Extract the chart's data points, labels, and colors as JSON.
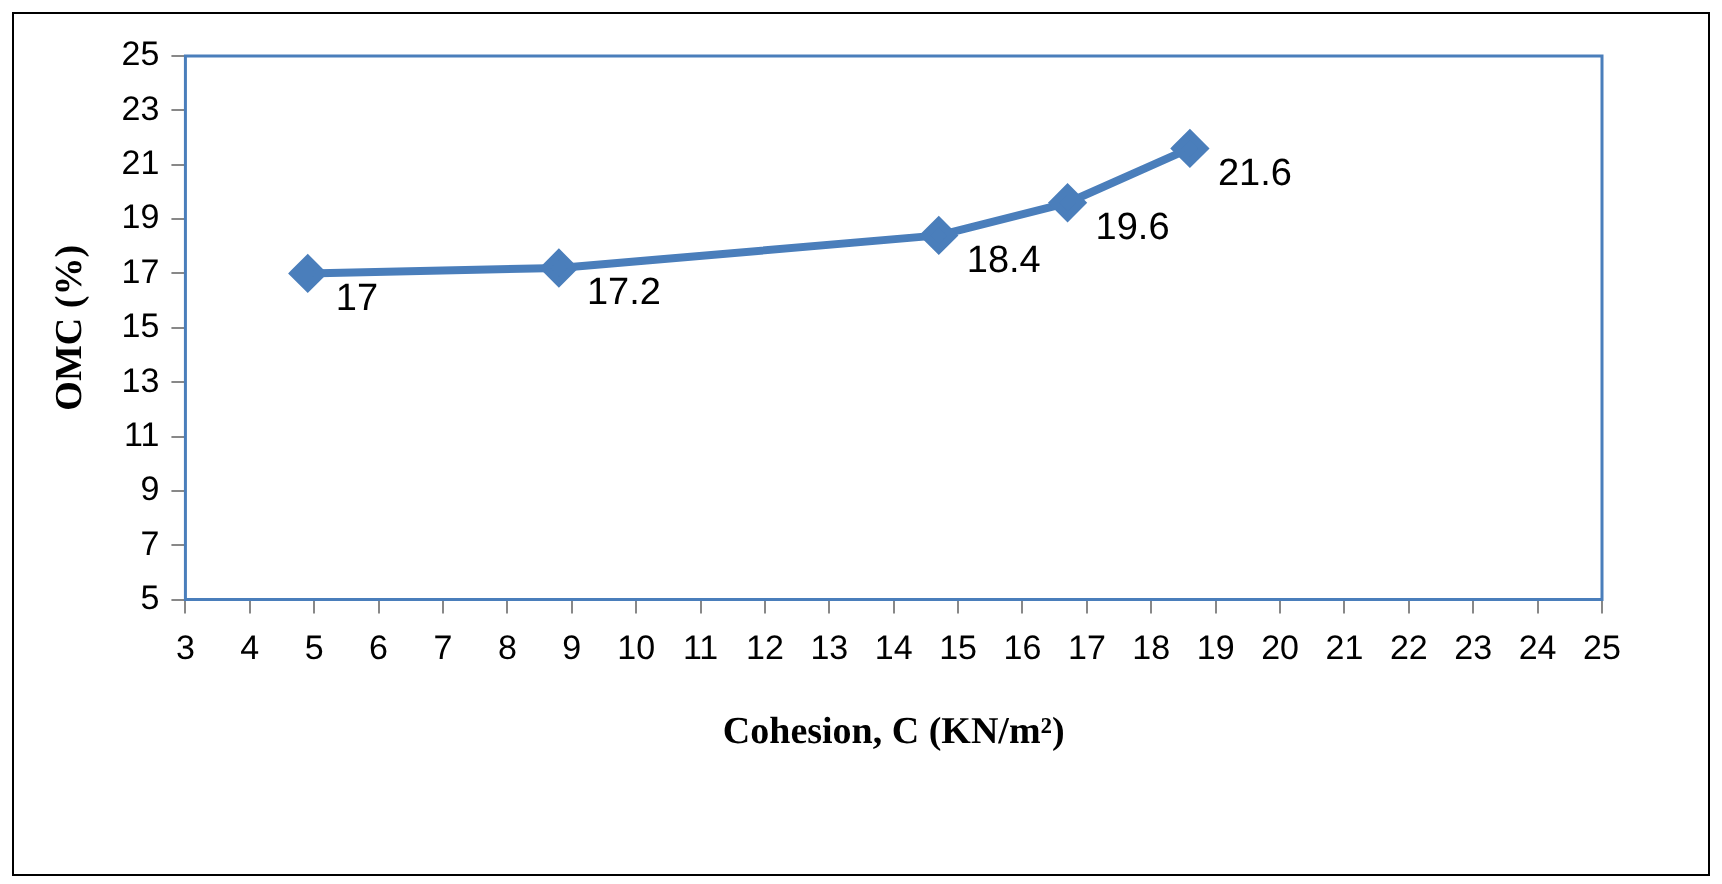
{
  "chart_data": {
    "type": "line",
    "xlabel": "Cohesion, C (KN/m²)",
    "ylabel": "OMC (%)",
    "x": [
      4.9,
      8.8,
      14.7,
      16.7,
      18.6
    ],
    "series": [
      {
        "color": "#4a7ebb",
        "values": [
          17,
          17.2,
          18.4,
          19.6,
          21.6
        ]
      }
    ],
    "xlim": [
      3,
      25
    ],
    "xticks": [
      3,
      4,
      5,
      6,
      7,
      8,
      9,
      10,
      11,
      12,
      13,
      14,
      15,
      16,
      17,
      18,
      19,
      20,
      21,
      22,
      23,
      24,
      25
    ],
    "ylim": [
      5,
      25
    ],
    "yticks": [
      5,
      7,
      9,
      11,
      13,
      15,
      17,
      19,
      21,
      23,
      25
    ],
    "marker": "diamond",
    "line_style": "solid",
    "data_labels": true,
    "grid": false,
    "legend": false
  }
}
